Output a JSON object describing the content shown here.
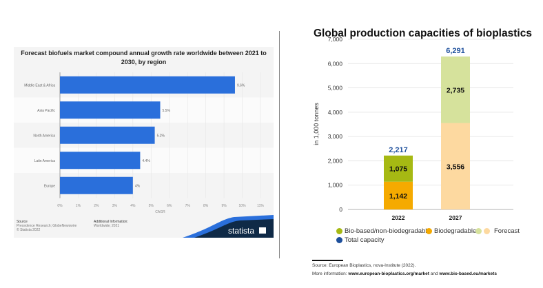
{
  "chart_data": [
    {
      "type": "bar",
      "orientation": "horizontal",
      "title": "Forecast biofuels market compound annual growth rate worldwide between 2021 to 2030, by region",
      "categories": [
        "Middle East & Africa",
        "Asia Pacific",
        "North America",
        "Latin America",
        "Europe"
      ],
      "values": [
        9.6,
        5.5,
        5.2,
        4.4,
        4
      ],
      "value_labels": [
        "9.6%",
        "5.5%",
        "5.2%",
        "4.4%",
        "4%"
      ],
      "xlabel": "CAGR",
      "xlim": [
        0,
        11
      ],
      "xticks": [
        "0%",
        "1%",
        "2%",
        "3%",
        "4%",
        "5%",
        "6%",
        "7%",
        "8%",
        "9%",
        "10%",
        "11%"
      ],
      "bar_color": "#2a6fdb"
    },
    {
      "type": "bar",
      "stacked": true,
      "title": "Global production capacities of bioplastics",
      "categories": [
        "2022",
        "2027"
      ],
      "ylabel": "in 1,000 tonnes",
      "ylim": [
        0,
        7000
      ],
      "yticks": [
        "0",
        "1,000",
        "2,000",
        "3,000",
        "4,000",
        "5,000",
        "6,000",
        "7,000"
      ],
      "series": [
        {
          "name": "Biodegradable",
          "values": [
            1142,
            3556
          ],
          "labels": [
            "1,142",
            "3,556"
          ],
          "colors": [
            "#f5aa00",
            "#fdd9a0"
          ]
        },
        {
          "name": "Bio-based/non-biodegradable",
          "values": [
            1075,
            2735
          ],
          "labels": [
            "1,075",
            "2,735"
          ],
          "colors": [
            "#a6b913",
            "#d6e29c"
          ]
        }
      ],
      "totals": [
        2217,
        6291
      ],
      "total_labels": [
        "2,217",
        "6,291"
      ],
      "total_color": "#1d4f9c"
    }
  ],
  "left_footer": {
    "source_title": "Source",
    "source_text": "Precedence Research; GlobeNewswire",
    "copyright": "© Statista 2022",
    "info_title": "Additional Information:",
    "info_text": "Worldwide; 2021",
    "logo": "statista"
  },
  "legend": {
    "bio_based": "Bio-based/non-biodegradable",
    "biodegradable": "Biodegradable",
    "forecast": "Forecast",
    "total": "Total capacity"
  },
  "footer": {
    "source": "Source: European Bioplastics, nova-Institute (2022).",
    "more_prefix": "More information: ",
    "link1": "www.european-bioplastics.org/market",
    "and": " and ",
    "link2": "www.bio-based.eu/markets"
  }
}
